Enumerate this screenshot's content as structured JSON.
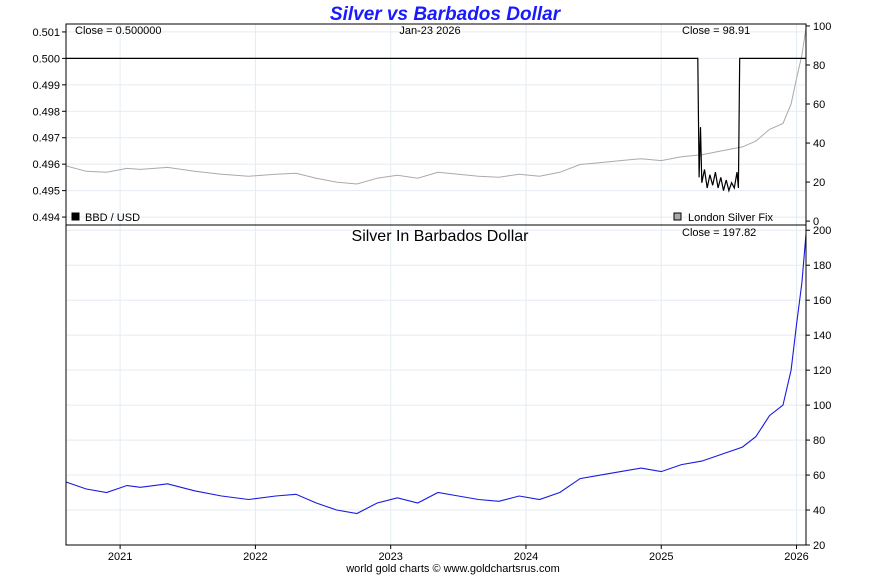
{
  "chart_data": [
    {
      "type": "line",
      "title": "Silver vs Barbados Dollar",
      "date_label": "Jan-23  2026",
      "x_ticks": [
        "2021",
        "2022",
        "2023",
        "2024",
        "2025",
        "2026"
      ],
      "left_axis": {
        "ticks": [
          "0.494",
          "0.495",
          "0.496",
          "0.497",
          "0.498",
          "0.499",
          "0.500",
          "0.501"
        ],
        "ylim": [
          0.4937,
          0.5013
        ]
      },
      "right_axis": {
        "ticks": [
          "0",
          "20",
          "40",
          "60",
          "80",
          "100"
        ],
        "ylim": [
          -2,
          101
        ]
      },
      "series": [
        {
          "name": "BBD / USD",
          "close_label": "Close = 0.500000",
          "color": "#000000",
          "axis": "left",
          "points": [
            [
              2020.6,
              0.5
            ],
            [
              2025.27,
              0.5
            ],
            [
              2025.28,
              0.4955
            ],
            [
              2025.29,
              0.4974
            ],
            [
              2025.3,
              0.4953
            ],
            [
              2025.32,
              0.4958
            ],
            [
              2025.34,
              0.4951
            ],
            [
              2025.36,
              0.4956
            ],
            [
              2025.38,
              0.4952
            ],
            [
              2025.4,
              0.4957
            ],
            [
              2025.42,
              0.4951
            ],
            [
              2025.44,
              0.4955
            ],
            [
              2025.46,
              0.495
            ],
            [
              2025.48,
              0.4954
            ],
            [
              2025.5,
              0.495
            ],
            [
              2025.52,
              0.4953
            ],
            [
              2025.54,
              0.4951
            ],
            [
              2025.56,
              0.4957
            ],
            [
              2025.57,
              0.4951
            ],
            [
              2025.58,
              0.5
            ],
            [
              2026.07,
              0.5
            ]
          ]
        },
        {
          "name": "London Silver Fix",
          "close_label": "Close = 98.91",
          "color": "#aaaaaa",
          "axis": "right",
          "points": [
            [
              2020.6,
              28.3
            ],
            [
              2020.75,
              25.5
            ],
            [
              2020.9,
              25
            ],
            [
              2021.05,
              27
            ],
            [
              2021.15,
              26.5
            ],
            [
              2021.35,
              27.5
            ],
            [
              2021.55,
              25.5
            ],
            [
              2021.75,
              24
            ],
            [
              2021.95,
              23
            ],
            [
              2022.15,
              24
            ],
            [
              2022.3,
              24.5
            ],
            [
              2022.45,
              22
            ],
            [
              2022.6,
              20
            ],
            [
              2022.75,
              19
            ],
            [
              2022.9,
              22
            ],
            [
              2023.05,
              23.5
            ],
            [
              2023.2,
              22
            ],
            [
              2023.35,
              25
            ],
            [
              2023.5,
              24
            ],
            [
              2023.65,
              23
            ],
            [
              2023.8,
              22.5
            ],
            [
              2023.95,
              24
            ],
            [
              2024.1,
              23
            ],
            [
              2024.25,
              25
            ],
            [
              2024.4,
              29
            ],
            [
              2024.55,
              30
            ],
            [
              2024.7,
              31
            ],
            [
              2024.85,
              32
            ],
            [
              2025.0,
              31
            ],
            [
              2025.15,
              33
            ],
            [
              2025.3,
              34
            ],
            [
              2025.45,
              36
            ],
            [
              2025.6,
              38
            ],
            [
              2025.7,
              41
            ],
            [
              2025.8,
              47
            ],
            [
              2025.9,
              50
            ],
            [
              2025.96,
              60
            ],
            [
              2026.0,
              73
            ],
            [
              2026.04,
              85
            ],
            [
              2026.07,
              98.9
            ]
          ]
        }
      ]
    },
    {
      "type": "line",
      "title": "Silver In Barbados Dollar",
      "x_ticks": [
        "2021",
        "2022",
        "2023",
        "2024",
        "2025",
        "2026"
      ],
      "y_ticks": [
        "20",
        "40",
        "60",
        "80",
        "100",
        "120",
        "140",
        "160",
        "180",
        "200"
      ],
      "ylim": [
        20,
        203
      ],
      "series": [
        {
          "name": "",
          "close_label": "Close = 197.82",
          "color": "#1a1adf",
          "points": [
            [
              2020.6,
              56
            ],
            [
              2020.75,
              52
            ],
            [
              2020.9,
              50
            ],
            [
              2021.05,
              54
            ],
            [
              2021.15,
              53
            ],
            [
              2021.35,
              55
            ],
            [
              2021.55,
              51
            ],
            [
              2021.75,
              48
            ],
            [
              2021.95,
              46
            ],
            [
              2022.15,
              48
            ],
            [
              2022.3,
              49
            ],
            [
              2022.45,
              44
            ],
            [
              2022.6,
              40
            ],
            [
              2022.75,
              38
            ],
            [
              2022.9,
              44
            ],
            [
              2023.05,
              47
            ],
            [
              2023.2,
              44
            ],
            [
              2023.35,
              50
            ],
            [
              2023.5,
              48
            ],
            [
              2023.65,
              46
            ],
            [
              2023.8,
              45
            ],
            [
              2023.95,
              48
            ],
            [
              2024.1,
              46
            ],
            [
              2024.25,
              50
            ],
            [
              2024.4,
              58
            ],
            [
              2024.55,
              60
            ],
            [
              2024.7,
              62
            ],
            [
              2024.85,
              64
            ],
            [
              2025.0,
              62
            ],
            [
              2025.15,
              66
            ],
            [
              2025.3,
              68
            ],
            [
              2025.45,
              72
            ],
            [
              2025.6,
              76
            ],
            [
              2025.7,
              82
            ],
            [
              2025.8,
              94
            ],
            [
              2025.9,
              100
            ],
            [
              2025.96,
              120
            ],
            [
              2026.0,
              146
            ],
            [
              2026.04,
              170
            ],
            [
              2026.07,
              197.8
            ]
          ]
        }
      ]
    }
  ],
  "footer": "world gold charts © www.goldchartsrus.com"
}
